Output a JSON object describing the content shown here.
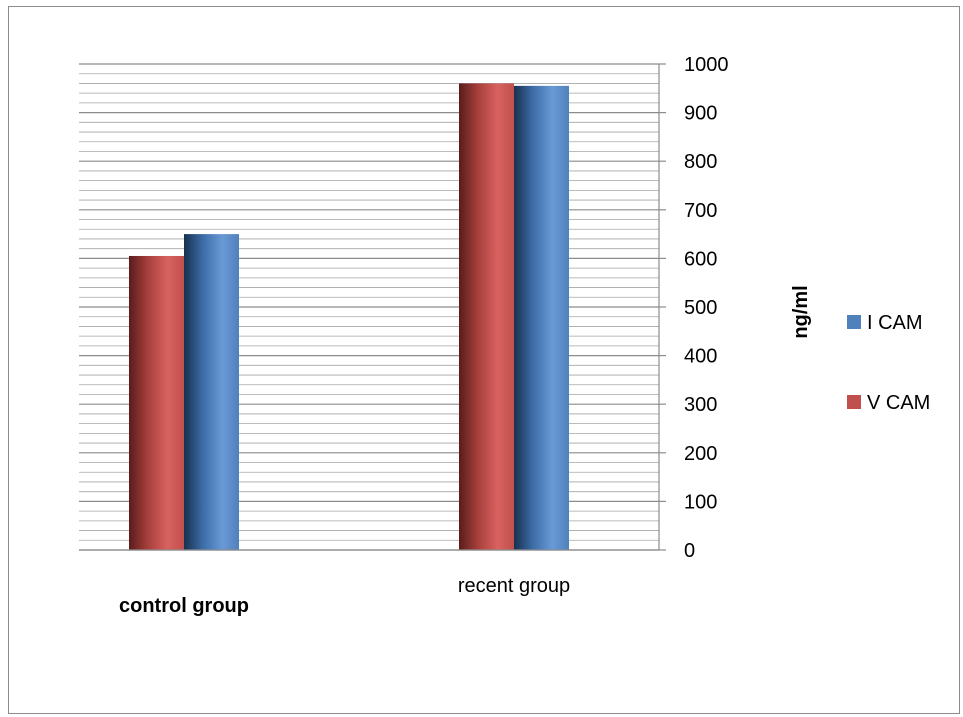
{
  "chart_data": {
    "type": "bar",
    "categories": [
      "control group",
      "recent group"
    ],
    "series": [
      {
        "name": "V CAM",
        "values": [
          605,
          960
        ],
        "color": "#c0504d"
      },
      {
        "name": "I CAM",
        "values": [
          650,
          955
        ],
        "color": "#4f81bd"
      }
    ],
    "ylabel": "ng/ml",
    "ylim": [
      0,
      1000
    ],
    "yticks": [
      0,
      100,
      200,
      300,
      400,
      500,
      600,
      700,
      800,
      900,
      1000
    ],
    "y_axis_side": "right",
    "grid": true,
    "minor_grid": true,
    "legend": {
      "placement": "right",
      "entries": [
        {
          "name": "I CAM",
          "color": "#4f81bd"
        },
        {
          "name": "V CAM",
          "color": "#c0504d"
        }
      ]
    },
    "category_label_bold": [
      true,
      false
    ]
  }
}
